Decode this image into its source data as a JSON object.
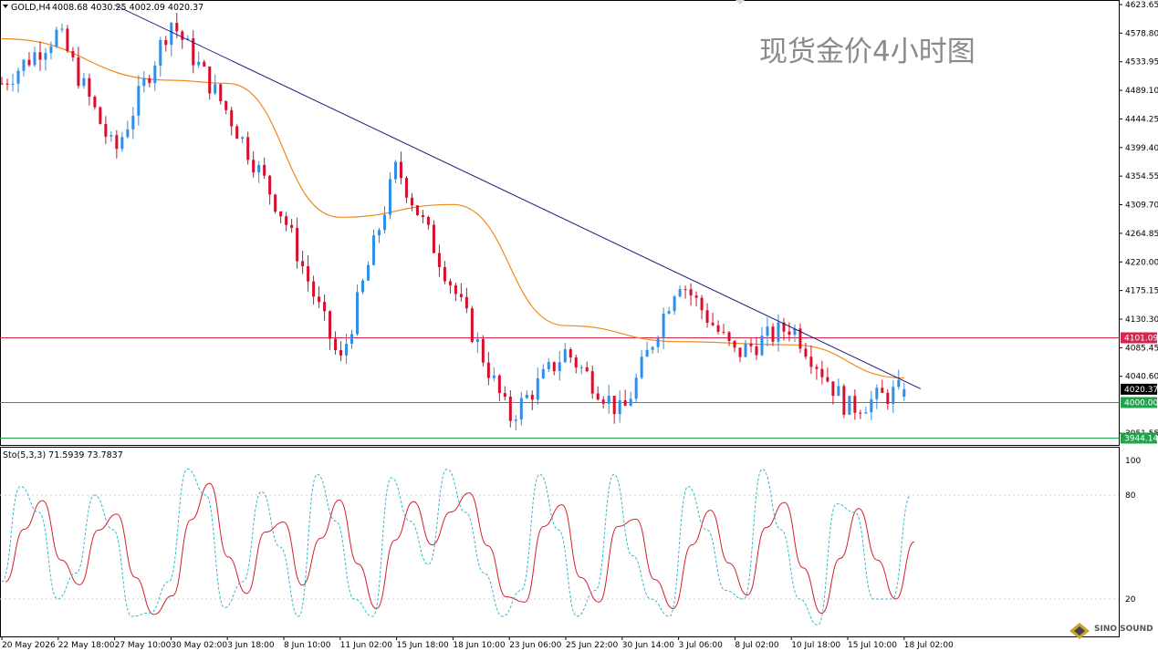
{
  "header": {
    "symbol_label": "GOLD,H4",
    "ohlc_text": "4008.68 4030.25 4002.09 4020.37"
  },
  "watermark_title": "现货金价4小时图",
  "price_axis": {
    "min": 3951.55,
    "max": 4623.65,
    "ticks": [
      "4623.65",
      "4578.80",
      "4533.95",
      "4489.10",
      "4444.25",
      "4399.40",
      "4354.55",
      "4309.70",
      "4264.85",
      "4220.00",
      "4175.15",
      "4130.30",
      "4085.45",
      "4040.60",
      "3951.55"
    ]
  },
  "horizontal_levels": [
    {
      "label": "4101.09",
      "value": 4101.09,
      "color": "#d6254e"
    },
    {
      "label": "4000.00",
      "value": 4000.0,
      "color": "#1ea54c"
    },
    {
      "label": "3944.14",
      "value": 3944.14,
      "color": "#1ea54c"
    }
  ],
  "current_price": {
    "label": "4020.37",
    "value": 4020.37
  },
  "indicator": {
    "label": "Sto(5,3,3) 71.5939 73.7837",
    "ticks": [
      "100",
      "80",
      "20"
    ],
    "levels": [
      80,
      20
    ]
  },
  "time_axis": {
    "labels": [
      "20 May 2026",
      "22 May 18:00",
      "27 May 10:00",
      "30 May 02:00",
      "3 Jun 18:00",
      "8 Jun 10:00",
      "11 Jun 02:00",
      "15 Jun 18:00",
      "18 Jun 10:00",
      "23 Jun 06:00",
      "25 Jun 22:00",
      "30 Jun 14:00",
      "3 Jul 06:00",
      "8 Jul 02:00",
      "10 Jul 18:00",
      "15 Jul 10:00",
      "18 Jul 02:00"
    ]
  },
  "logo": {
    "text": "SINO SOUND"
  },
  "colors": {
    "bull": "#2f8fe8",
    "bear": "#d60f2e",
    "ma": "#f08a1c",
    "trend": "#1a1a7a",
    "k_line": "#38b8c8",
    "d_line": "#d21f2c"
  },
  "chart_data": {
    "type": "candlestick",
    "title": "现货金价4小时图",
    "symbol": "GOLD",
    "timeframe": "H4",
    "last_bar": {
      "open": 4008.68,
      "high": 4030.25,
      "low": 4002.09,
      "close": 4020.37
    },
    "price_range": [
      3951.55,
      4623.65
    ],
    "swing_points": [
      {
        "time": "20 May 2026",
        "price": 4500
      },
      {
        "time": "22 May 18:00",
        "price": 4580
      },
      {
        "time": "27 May 10:00",
        "price": 4390
      },
      {
        "time": "30 May 02:00",
        "price": 4598
      },
      {
        "time": "3 Jun 18:00",
        "price": 4455
      },
      {
        "time": "8 Jun 10:00",
        "price": 4290
      },
      {
        "time": "11 Jun 02:00",
        "price": 4060
      },
      {
        "time": "15 Jun 18:00",
        "price": 4370
      },
      {
        "time": "18 Jun 10:00",
        "price": 4180
      },
      {
        "time": "23 Jun 06:00",
        "price": 3975
      },
      {
        "time": "25 Jun 22:00",
        "price": 4080
      },
      {
        "time": "30 Jun 14:00",
        "price": 3980
      },
      {
        "time": "3 Jul 06:00",
        "price": 4195
      },
      {
        "time": "8 Jul 02:00",
        "price": 4075
      },
      {
        "time": "10 Jul 18:00",
        "price": 4120
      },
      {
        "time": "15 Jul 10:00",
        "price": 3990
      },
      {
        "time": "18 Jul 02:00",
        "price": 4020
      }
    ],
    "moving_average": [
      {
        "time": "20 May 2026",
        "price": 4570
      },
      {
        "time": "30 May 02:00",
        "price": 4505
      },
      {
        "time": "3 Jun 18:00",
        "price": 4500
      },
      {
        "time": "11 Jun 02:00",
        "price": 4290
      },
      {
        "time": "18 Jun 10:00",
        "price": 4310
      },
      {
        "time": "25 Jun 22:00",
        "price": 4120
      },
      {
        "time": "3 Jul 06:00",
        "price": 4095
      },
      {
        "time": "10 Jul 18:00",
        "price": 4090
      },
      {
        "time": "18 Jul 02:00",
        "price": 4038
      }
    ],
    "trendline": [
      {
        "time": "27 May 10:00",
        "price": 4623
      },
      {
        "time": "18 Jul 02:00",
        "price": 4030
      }
    ],
    "levels": [
      4101.09,
      4000.0,
      3944.14
    ],
    "stochastic": {
      "params": "5,3,3",
      "k": 71.5939,
      "d": 73.7837,
      "k_series": [
        30,
        85,
        70,
        20,
        35,
        80,
        60,
        10,
        12,
        30,
        95,
        80,
        15,
        30,
        82,
        50,
        10,
        92,
        65,
        20,
        10,
        90,
        65,
        40,
        95,
        70,
        35,
        10,
        25,
        92,
        60,
        10,
        25,
        92,
        45,
        20,
        10,
        85,
        60,
        25,
        20,
        95,
        60,
        20,
        5,
        75,
        70,
        20,
        20,
        80
      ]
    }
  }
}
